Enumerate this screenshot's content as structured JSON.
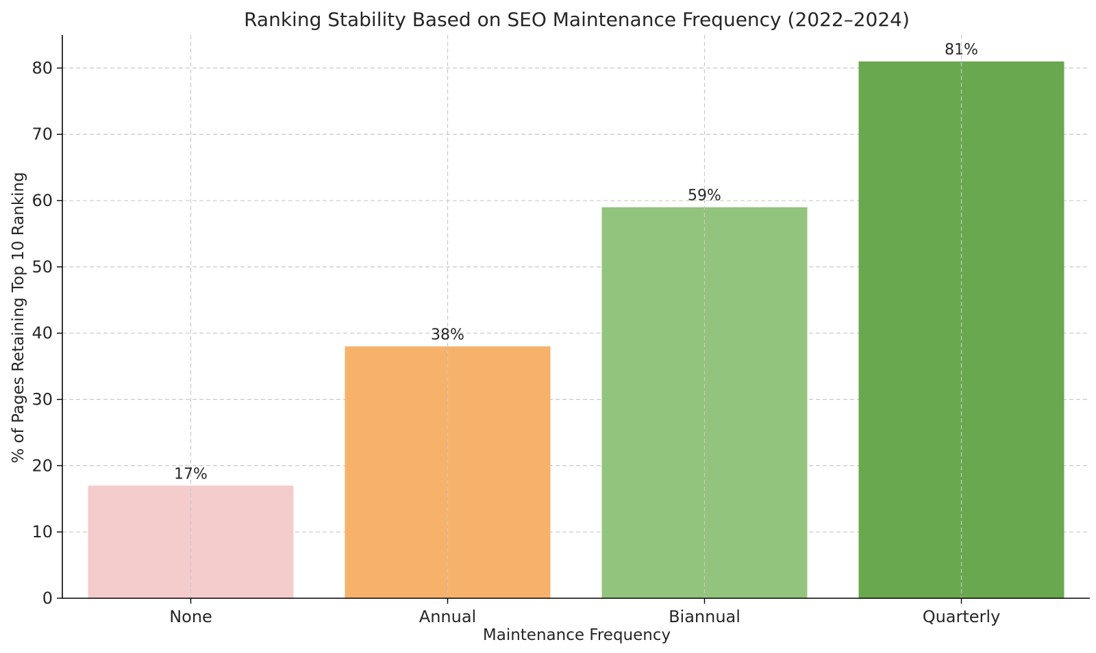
{
  "chart_data": {
    "type": "bar",
    "title": "Ranking Stability Based on SEO Maintenance Frequency (2022–2024)",
    "xlabel": "Maintenance Frequency",
    "ylabel": "% of Pages Retaining Top 10 Ranking",
    "categories": [
      "None",
      "Annual",
      "Biannual",
      "Quarterly"
    ],
    "values": [
      17,
      38,
      59,
      81
    ],
    "data_labels": [
      "17%",
      "38%",
      "59%",
      "81%"
    ],
    "colors": [
      "#f4cccc",
      "#f6b26b",
      "#93c47d",
      "#6aa84f"
    ],
    "ylim": [
      0,
      85
    ],
    "yticks": [
      0,
      10,
      20,
      30,
      40,
      50,
      60,
      70,
      80
    ],
    "grid": true,
    "legend": "none"
  }
}
